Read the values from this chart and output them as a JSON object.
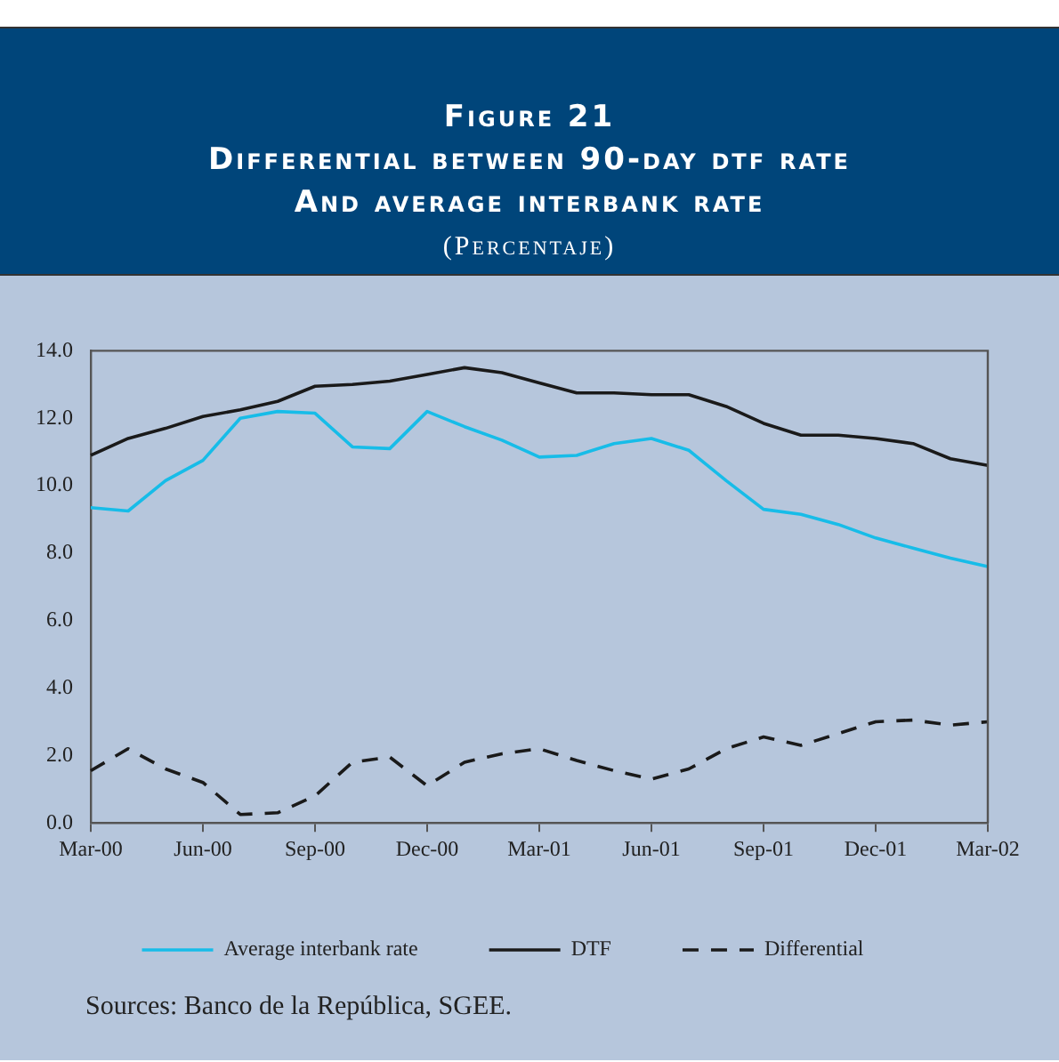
{
  "chart_data": {
    "type": "line",
    "title": "Figure 21\nDifferential between 90-day dtf rate\nAnd average interbank rate",
    "subtitle": "(Percentaje)",
    "categories": [
      "Mar-00",
      null,
      null,
      "Jun-00",
      null,
      null,
      "Sep-00",
      null,
      null,
      "Dec-00",
      null,
      null,
      "Mar-01",
      null,
      null,
      "Jun-01",
      null,
      null,
      "Sep-01",
      null,
      null,
      "Dec-01",
      null,
      null,
      "Mar-02"
    ],
    "series": [
      {
        "name": "Average interbank rate",
        "color": "#17bce8",
        "line_style": "solid",
        "values": [
          9.35,
          9.25,
          10.15,
          10.75,
          12.0,
          12.2,
          12.15,
          11.15,
          11.1,
          12.2,
          11.75,
          11.35,
          10.85,
          10.9,
          11.25,
          11.4,
          11.05,
          10.15,
          9.3,
          9.15,
          8.85,
          8.45,
          8.15,
          7.85,
          7.6
        ]
      },
      {
        "name": "DTF",
        "color": "#1a1a1a",
        "line_style": "solid",
        "values": [
          10.9,
          11.4,
          11.7,
          12.05,
          12.25,
          12.5,
          12.95,
          13.0,
          13.1,
          13.3,
          13.5,
          13.35,
          13.05,
          12.75,
          12.75,
          12.7,
          12.7,
          12.35,
          11.85,
          11.5,
          11.5,
          11.4,
          11.25,
          10.8,
          10.6
        ]
      },
      {
        "name": "Differential",
        "color": "#1a1a1a",
        "line_style": "dashed",
        "values": [
          1.55,
          2.2,
          1.6,
          1.2,
          0.25,
          0.3,
          0.8,
          1.8,
          1.95,
          1.1,
          1.8,
          2.05,
          2.2,
          1.85,
          1.55,
          1.3,
          1.6,
          2.2,
          2.55,
          2.3,
          2.65,
          3.0,
          3.05,
          2.9,
          3.0
        ]
      }
    ],
    "ylim": [
      0,
      14
    ],
    "yticks": [
      {
        "value": 0,
        "label": "0.0"
      },
      {
        "value": 2,
        "label": "2.0"
      },
      {
        "value": 4,
        "label": "4.0"
      },
      {
        "value": 6,
        "label": "6.0"
      },
      {
        "value": 8,
        "label": "8.0"
      },
      {
        "value": 10,
        "label": "10.0"
      },
      {
        "value": 12,
        "label": "12.0"
      },
      {
        "value": 14,
        "label": "14.0"
      }
    ],
    "grid": false,
    "legend": "bottom",
    "marker": "none",
    "annotations": [
      "Sources: Banco de la República, SGEE."
    ]
  }
}
